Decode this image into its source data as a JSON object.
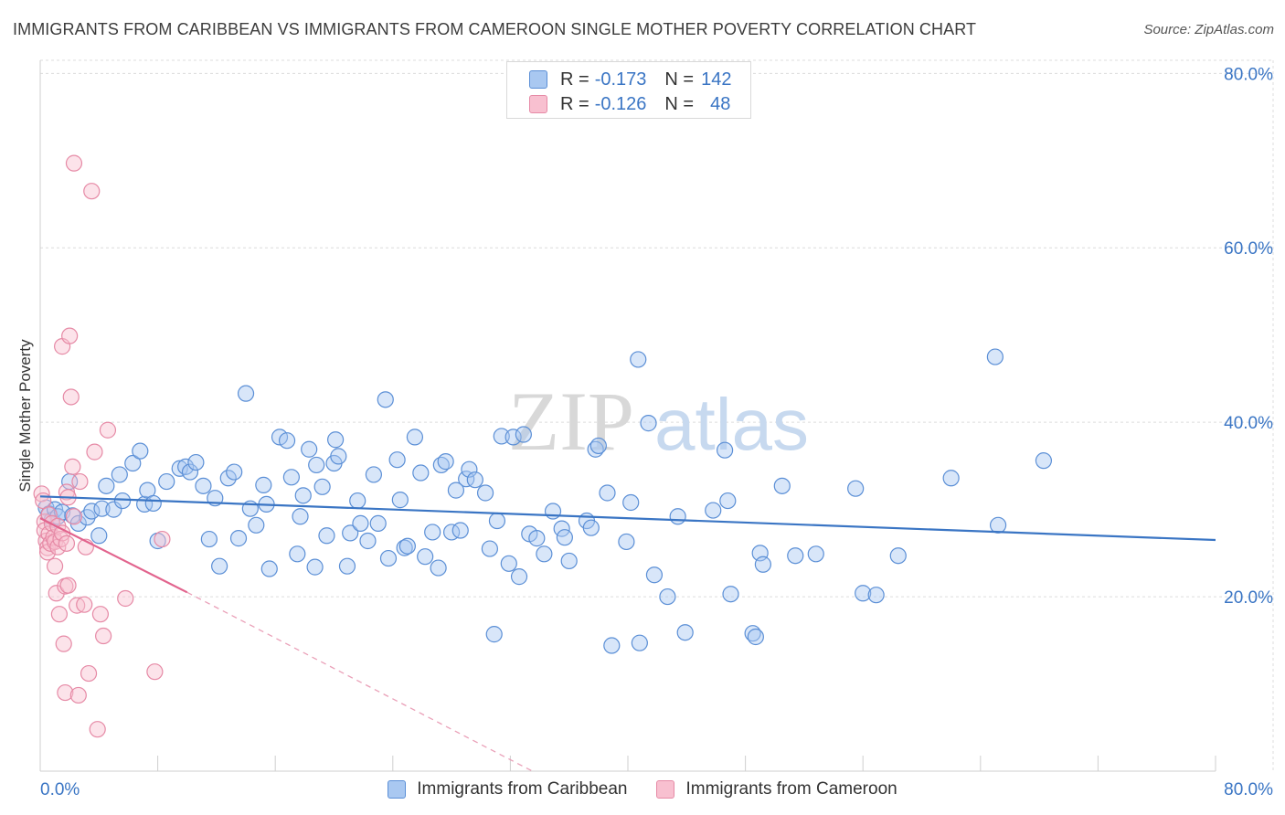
{
  "title": "IMMIGRANTS FROM CARIBBEAN VS IMMIGRANTS FROM CAMEROON SINGLE MOTHER POVERTY CORRELATION CHART",
  "source": "Source: ZipAtlas.com",
  "watermark": {
    "zip": "ZIP",
    "atlas": "atlas"
  },
  "legend": {
    "r_label": "R =",
    "n_label": "N =",
    "rows": [
      {
        "r": "-0.173",
        "n": "142",
        "fill": "#a9c8f1",
        "stroke": "#5b8fd6"
      },
      {
        "r": "-0.126",
        "n": "48",
        "fill": "#f8c0d0",
        "stroke": "#e68aa6"
      }
    ]
  },
  "chart_data": {
    "type": "scatter",
    "title": "IMMIGRANTS FROM CARIBBEAN VS IMMIGRANTS FROM CAMEROON SINGLE MOTHER POVERTY CORRELATION CHART",
    "xlabel": "",
    "ylabel": "Single Mother Poverty",
    "xlim": [
      0,
      80
    ],
    "ylim": [
      0,
      81.5
    ],
    "x_tick_labels": [
      "0.0%",
      "80.0%"
    ],
    "y_ticks": [
      20,
      40,
      60,
      80
    ],
    "y_tick_labels": [
      "20.0%",
      "40.0%",
      "60.0%",
      "80.0%"
    ],
    "grid": "horizontal-dashed",
    "legend_position": "top-center",
    "series": [
      {
        "name": "Immigrants from Caribbean",
        "color": "#3a75c4",
        "fill": "#a9c8f1",
        "r": -0.173,
        "n": 142,
        "trend": {
          "x": [
            0,
            80
          ],
          "y": [
            31.5,
            26.5
          ],
          "style": "solid"
        },
        "points": [
          [
            0.4,
            30.2
          ],
          [
            0.6,
            29.5
          ],
          [
            0.8,
            28.8
          ],
          [
            1.0,
            30.0
          ],
          [
            1.2,
            29.2
          ],
          [
            1.5,
            29.7
          ],
          [
            2.0,
            33.2
          ],
          [
            2.2,
            29.3
          ],
          [
            2.6,
            28.4
          ],
          [
            3.2,
            29.1
          ],
          [
            3.5,
            29.8
          ],
          [
            4.0,
            27.0
          ],
          [
            4.2,
            30.1
          ],
          [
            4.5,
            32.7
          ],
          [
            5.0,
            30.0
          ],
          [
            5.4,
            34.0
          ],
          [
            5.6,
            31.0
          ],
          [
            6.3,
            35.3
          ],
          [
            6.8,
            36.7
          ],
          [
            7.1,
            30.6
          ],
          [
            7.3,
            32.2
          ],
          [
            7.7,
            30.7
          ],
          [
            8.0,
            26.4
          ],
          [
            8.6,
            33.2
          ],
          [
            9.5,
            34.7
          ],
          [
            9.9,
            34.9
          ],
          [
            10.2,
            34.3
          ],
          [
            10.6,
            35.4
          ],
          [
            11.1,
            32.7
          ],
          [
            11.5,
            26.6
          ],
          [
            11.9,
            31.3
          ],
          [
            12.2,
            23.5
          ],
          [
            12.8,
            33.6
          ],
          [
            13.2,
            34.3
          ],
          [
            13.5,
            26.7
          ],
          [
            14.0,
            43.3
          ],
          [
            14.3,
            30.1
          ],
          [
            14.7,
            28.2
          ],
          [
            15.2,
            32.8
          ],
          [
            15.4,
            30.6
          ],
          [
            15.6,
            23.2
          ],
          [
            16.3,
            38.3
          ],
          [
            16.8,
            37.9
          ],
          [
            17.1,
            33.7
          ],
          [
            17.5,
            24.9
          ],
          [
            17.7,
            29.2
          ],
          [
            17.9,
            31.6
          ],
          [
            18.3,
            36.9
          ],
          [
            18.7,
            23.4
          ],
          [
            18.8,
            35.1
          ],
          [
            19.2,
            32.6
          ],
          [
            19.5,
            27.0
          ],
          [
            20.0,
            35.3
          ],
          [
            20.1,
            38.0
          ],
          [
            20.3,
            36.1
          ],
          [
            20.9,
            23.5
          ],
          [
            21.1,
            27.3
          ],
          [
            21.6,
            31.0
          ],
          [
            21.8,
            28.4
          ],
          [
            22.3,
            26.4
          ],
          [
            22.7,
            34.0
          ],
          [
            23.0,
            28.4
          ],
          [
            23.5,
            42.6
          ],
          [
            23.7,
            24.4
          ],
          [
            24.3,
            35.7
          ],
          [
            24.5,
            31.1
          ],
          [
            24.8,
            25.6
          ],
          [
            25.0,
            25.8
          ],
          [
            25.5,
            38.3
          ],
          [
            25.9,
            34.2
          ],
          [
            26.2,
            24.6
          ],
          [
            26.7,
            27.4
          ],
          [
            27.1,
            23.3
          ],
          [
            27.3,
            35.1
          ],
          [
            27.6,
            35.5
          ],
          [
            28.0,
            27.4
          ],
          [
            28.3,
            32.2
          ],
          [
            28.6,
            27.6
          ],
          [
            29.0,
            33.5
          ],
          [
            29.2,
            34.6
          ],
          [
            29.6,
            33.4
          ],
          [
            30.3,
            31.9
          ],
          [
            30.6,
            25.5
          ],
          [
            30.9,
            15.7
          ],
          [
            31.1,
            28.7
          ],
          [
            31.4,
            38.4
          ],
          [
            31.9,
            23.8
          ],
          [
            32.2,
            38.3
          ],
          [
            32.6,
            22.3
          ],
          [
            32.9,
            38.6
          ],
          [
            33.3,
            27.2
          ],
          [
            33.8,
            26.7
          ],
          [
            34.3,
            24.9
          ],
          [
            34.9,
            29.8
          ],
          [
            35.5,
            27.8
          ],
          [
            35.7,
            26.8
          ],
          [
            36.0,
            24.1
          ],
          [
            37.2,
            28.7
          ],
          [
            37.5,
            27.9
          ],
          [
            37.8,
            36.9
          ],
          [
            38.0,
            37.3
          ],
          [
            38.6,
            31.9
          ],
          [
            38.9,
            14.4
          ],
          [
            39.9,
            26.3
          ],
          [
            40.2,
            30.8
          ],
          [
            40.7,
            47.2
          ],
          [
            40.8,
            14.7
          ],
          [
            41.4,
            39.9
          ],
          [
            41.8,
            22.5
          ],
          [
            42.7,
            20.0
          ],
          [
            43.4,
            29.2
          ],
          [
            43.9,
            15.9
          ],
          [
            45.8,
            29.9
          ],
          [
            46.6,
            36.8
          ],
          [
            46.8,
            31.0
          ],
          [
            47.0,
            20.3
          ],
          [
            48.5,
            15.8
          ],
          [
            48.7,
            15.4
          ],
          [
            49.0,
            25.0
          ],
          [
            49.2,
            23.7
          ],
          [
            50.5,
            32.7
          ],
          [
            51.4,
            24.7
          ],
          [
            52.8,
            24.9
          ],
          [
            55.5,
            32.4
          ],
          [
            56.0,
            20.4
          ],
          [
            56.9,
            20.2
          ],
          [
            58.4,
            24.7
          ],
          [
            62.0,
            33.6
          ],
          [
            65.0,
            47.5
          ],
          [
            65.2,
            28.2
          ],
          [
            68.3,
            35.6
          ]
        ]
      },
      {
        "name": "Immigrants from Cameroon",
        "color": "#e2648e",
        "fill": "#f8c0d0",
        "r": -0.126,
        "n": 48,
        "trend": {
          "x": [
            0,
            10.0
          ],
          "y": [
            29.0,
            20.5
          ],
          "style": "solid"
        },
        "trend_ext": {
          "x": [
            10.0,
            33.5
          ],
          "y": [
            20.5,
            0
          ],
          "style": "dashed"
        },
        "points": [
          [
            0.1,
            31.8
          ],
          [
            0.2,
            31.0
          ],
          [
            0.3,
            28.6
          ],
          [
            0.3,
            27.6
          ],
          [
            0.4,
            26.4
          ],
          [
            0.5,
            25.6
          ],
          [
            0.5,
            25.1
          ],
          [
            0.6,
            29.4
          ],
          [
            0.6,
            27.2
          ],
          [
            0.7,
            26.1
          ],
          [
            0.8,
            28.4
          ],
          [
            0.9,
            26.8
          ],
          [
            1.0,
            23.5
          ],
          [
            1.0,
            26.3
          ],
          [
            1.1,
            20.4
          ],
          [
            1.2,
            28.1
          ],
          [
            1.2,
            25.7
          ],
          [
            1.3,
            18.0
          ],
          [
            1.4,
            26.6
          ],
          [
            1.5,
            27.3
          ],
          [
            1.5,
            48.7
          ],
          [
            1.6,
            14.6
          ],
          [
            1.7,
            21.2
          ],
          [
            1.7,
            9.0
          ],
          [
            1.8,
            32.0
          ],
          [
            1.8,
            26.1
          ],
          [
            1.9,
            31.4
          ],
          [
            1.9,
            21.3
          ],
          [
            2.0,
            49.9
          ],
          [
            2.1,
            42.9
          ],
          [
            2.2,
            34.9
          ],
          [
            2.3,
            69.7
          ],
          [
            2.3,
            29.2
          ],
          [
            2.5,
            19.0
          ],
          [
            2.6,
            8.7
          ],
          [
            2.7,
            33.2
          ],
          [
            3.0,
            19.1
          ],
          [
            3.1,
            25.7
          ],
          [
            3.3,
            11.2
          ],
          [
            3.5,
            66.5
          ],
          [
            3.7,
            36.6
          ],
          [
            3.9,
            4.8
          ],
          [
            4.1,
            18.0
          ],
          [
            4.3,
            15.5
          ],
          [
            4.6,
            39.1
          ],
          [
            5.8,
            19.8
          ],
          [
            7.8,
            11.4
          ],
          [
            8.3,
            26.6
          ]
        ]
      }
    ]
  }
}
